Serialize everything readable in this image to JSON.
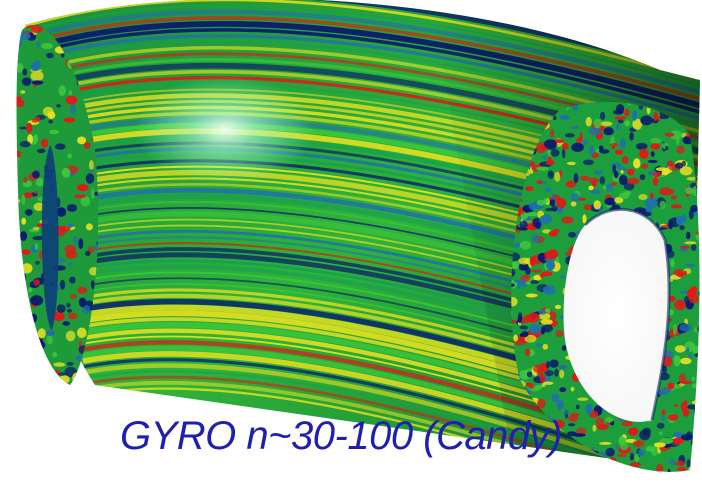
{
  "image": {
    "caption": "GYRO n~30-100 (Candy)",
    "caption_color": "#2020b0",
    "palette": [
      "#0a1a6e",
      "#1f6fb0",
      "#18a050",
      "#3cc83c",
      "#e6e020",
      "#e01818",
      "#f4f4f4"
    ]
  }
}
